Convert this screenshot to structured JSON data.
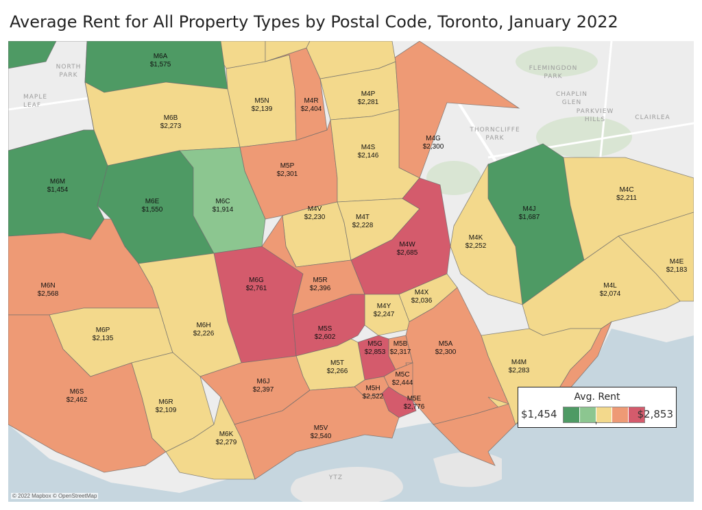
{
  "title": "Average Rent for All Property Types by Postal Code, Toronto, January 2022",
  "attribution": "© 2022 Mapbox © OpenStreetMap",
  "legend": {
    "title": "Avg. Rent",
    "min_label": "$1,454",
    "max_label": "$2,853",
    "ramp_colors": [
      "#4e9a64",
      "#8cc690",
      "#f3d98c",
      "#ee9a75",
      "#d45b6c"
    ]
  },
  "colors": {
    "water": "#c6d6df",
    "land": "#ededed",
    "park": "#d9e5d3"
  },
  "map_labels": {
    "north_park": "NORTH\nPARK",
    "maple_leaf": "MAPLE\nLEAF",
    "flemingdon_park": "FLEMINGDON\nPARK",
    "chaplin_glen": "CHAPLIN\nGLEN",
    "parkview_hills": "PARKVIEW\nHILLS",
    "thorncliffe_park": "THORNCLIFFE\nPARK",
    "clairlea": "CLAIRLEA",
    "ytz": "YTZ"
  },
  "postal_codes": [
    {
      "code": "M6A",
      "rent": "$1,575",
      "color": "#4e9a64"
    },
    {
      "code": "M5N",
      "rent": "$2,139",
      "color": "#f3d98c"
    },
    {
      "code": "M4R",
      "rent": "$2,404",
      "color": "#ee9a75"
    },
    {
      "code": "M4P",
      "rent": "$2,281",
      "color": "#f3d98c"
    },
    {
      "code": "M6B",
      "rent": "$2,273",
      "color": "#f3d98c"
    },
    {
      "code": "M4G",
      "rent": "$2,300",
      "color": "#ee9a75"
    },
    {
      "code": "M5P",
      "rent": "$2,301",
      "color": "#ee9a75"
    },
    {
      "code": "M4S",
      "rent": "$2,146",
      "color": "#f3d98c"
    },
    {
      "code": "M6M",
      "rent": "$1,454",
      "color": "#4e9a64"
    },
    {
      "code": "M6E",
      "rent": "$1,550",
      "color": "#4e9a64"
    },
    {
      "code": "M6C",
      "rent": "$1,914",
      "color": "#8cc690"
    },
    {
      "code": "M4V",
      "rent": "$2,230",
      "color": "#f3d98c"
    },
    {
      "code": "M4T",
      "rent": "$2,228",
      "color": "#f3d98c"
    },
    {
      "code": "M4J",
      "rent": "$1,687",
      "color": "#4e9a64"
    },
    {
      "code": "M4C",
      "rent": "$2,211",
      "color": "#f3d98c"
    },
    {
      "code": "M4K",
      "rent": "$2,252",
      "color": "#f3d98c"
    },
    {
      "code": "M4W",
      "rent": "$2,685",
      "color": "#d45b6c"
    },
    {
      "code": "M6N",
      "rent": "$2,568",
      "color": "#ee9a75"
    },
    {
      "code": "M6G",
      "rent": "$2,761",
      "color": "#d45b6c"
    },
    {
      "code": "M5R",
      "rent": "$2,396",
      "color": "#ee9a75"
    },
    {
      "code": "M4E",
      "rent": "$2,183",
      "color": "#f3d98c"
    },
    {
      "code": "M4X",
      "rent": "$2,036",
      "color": "#f3d98c"
    },
    {
      "code": "M4L",
      "rent": "$2,074",
      "color": "#f3d98c"
    },
    {
      "code": "M4Y",
      "rent": "$2,247",
      "color": "#f3d98c"
    },
    {
      "code": "M6P",
      "rent": "$2,135",
      "color": "#f3d98c"
    },
    {
      "code": "M6H",
      "rent": "$2,226",
      "color": "#f3d98c"
    },
    {
      "code": "M5S",
      "rent": "$2,602",
      "color": "#d45b6c"
    },
    {
      "code": "M5B",
      "rent": "$2,317",
      "color": "#ee9a75"
    },
    {
      "code": "M5A",
      "rent": "$2,300",
      "color": "#ee9a75"
    },
    {
      "code": "M5G",
      "rent": "$2,853",
      "color": "#d45b6c"
    },
    {
      "code": "M5T",
      "rent": "$2,266",
      "color": "#f3d98c"
    },
    {
      "code": "M6J",
      "rent": "$2,397",
      "color": "#ee9a75"
    },
    {
      "code": "M5C",
      "rent": "$2,444",
      "color": "#ee9a75"
    },
    {
      "code": "M5H",
      "rent": "$2,522",
      "color": "#ee9a75"
    },
    {
      "code": "M5E",
      "rent": "$2,776",
      "color": "#d45b6c"
    },
    {
      "code": "M4M",
      "rent": "$2,283",
      "color": "#f3d98c"
    },
    {
      "code": "M6S",
      "rent": "$2,462",
      "color": "#ee9a75"
    },
    {
      "code": "M6R",
      "rent": "$2,109",
      "color": "#f3d98c"
    },
    {
      "code": "M6K",
      "rent": "$2,279",
      "color": "#f3d98c"
    },
    {
      "code": "M5V",
      "rent": "$2,540",
      "color": "#ee9a75"
    }
  ]
}
